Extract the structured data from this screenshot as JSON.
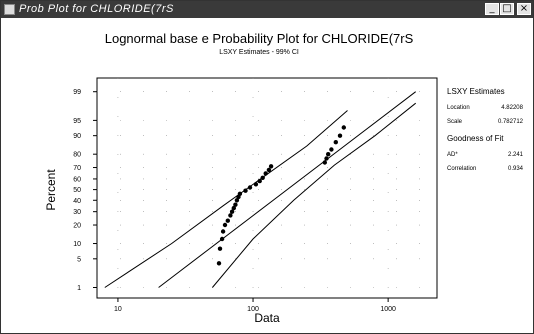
{
  "window": {
    "title": "Prob Plot for CHLORIDE(7rS",
    "minimize_glyph": "_",
    "maximize_glyph": "□",
    "close_glyph": "×"
  },
  "icons": {
    "app": "chart-window-icon",
    "minimize": "minimize-icon",
    "maximize": "maximize-icon",
    "close": "close-icon"
  },
  "plot": {
    "title": "Lognormal base e Probability Plot for CHLORIDE(7rS",
    "subtitle": "LSXY Estimates - 99% CI",
    "xlabel": "Data",
    "ylabel": "Percent"
  },
  "stats": {
    "heading": "LSXY Estimates",
    "location_label": "Location",
    "location_value": "4.82208",
    "scale_label": "Scale",
    "scale_value": "0.782712",
    "gof_heading": "Goodness of Fit",
    "ad_label": "AD*",
    "ad_value": "2.241",
    "corr_label": "Correlation",
    "corr_value": "0.934"
  },
  "chart_data": {
    "type": "scatter",
    "x_scale": "log",
    "y_scale": "probability",
    "x_ticks": [
      10,
      100,
      1000
    ],
    "x_tick_labels": [
      "10",
      "100",
      "1000"
    ],
    "y_ticks": [
      1,
      5,
      10,
      20,
      30,
      40,
      50,
      60,
      70,
      80,
      90,
      95,
      99
    ],
    "y_tick_labels": [
      "1",
      "5",
      "10",
      "20",
      "30",
      "40",
      "50",
      "60",
      "70",
      "80",
      "90",
      "95",
      "99"
    ],
    "xlim": [
      7,
      2300
    ],
    "ylim": [
      0.5,
      99.6
    ],
    "grid": true,
    "points": [
      [
        56,
        4
      ],
      [
        57,
        8
      ],
      [
        59,
        12
      ],
      [
        60,
        16
      ],
      [
        62,
        20
      ],
      [
        65,
        23
      ],
      [
        68,
        27
      ],
      [
        70,
        30
      ],
      [
        72,
        33
      ],
      [
        74,
        36
      ],
      [
        76,
        40
      ],
      [
        78,
        43
      ],
      [
        80,
        46
      ],
      [
        88,
        49
      ],
      [
        95,
        52
      ],
      [
        105,
        55
      ],
      [
        112,
        58
      ],
      [
        118,
        61
      ],
      [
        124,
        65
      ],
      [
        131,
        68
      ],
      [
        136,
        71
      ],
      [
        340,
        74
      ],
      [
        350,
        77
      ],
      [
        360,
        80
      ],
      [
        380,
        83
      ],
      [
        410,
        87
      ],
      [
        440,
        90
      ],
      [
        470,
        93
      ]
    ],
    "fit_line": [
      [
        20,
        1
      ],
      [
        1600,
        99
      ]
    ],
    "ci_lower": [
      [
        50,
        1
      ],
      [
        100,
        12
      ],
      [
        200,
        40
      ],
      [
        400,
        72
      ],
      [
        800,
        90
      ],
      [
        1600,
        98
      ]
    ],
    "ci_upper": [
      [
        8,
        1
      ],
      [
        25,
        10
      ],
      [
        60,
        35
      ],
      [
        120,
        62
      ],
      [
        250,
        85
      ],
      [
        500,
        97
      ]
    ]
  }
}
